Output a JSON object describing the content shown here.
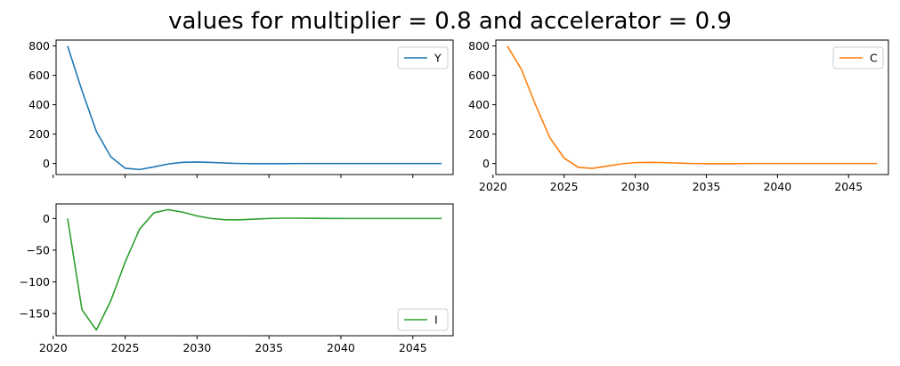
{
  "figure": {
    "title": "values for multiplier = 0.8 and accelerator = 0.9"
  },
  "chart_data": [
    {
      "type": "line",
      "name": "Y",
      "color": "#1f77b4",
      "x": [
        2021,
        2022,
        2023,
        2024,
        2025,
        2026,
        2027,
        2028,
        2029,
        2030,
        2031,
        2032,
        2033,
        2034,
        2035,
        2036,
        2037,
        2038,
        2039,
        2040,
        2041,
        2042,
        2043,
        2044,
        2045,
        2046,
        2047
      ],
      "series": [
        {
          "name": "Y",
          "color": "#1f77b4",
          "values": [
            800,
            496,
            218,
            46,
            -32,
            -41,
            -23,
            -3,
            8,
            10,
            7,
            3,
            0,
            -1,
            -1,
            -1,
            0,
            0,
            0,
            0,
            0,
            0,
            0,
            0,
            0,
            0,
            0
          ]
        }
      ],
      "xlim": [
        2020.2,
        2047.8
      ],
      "ylim": [
        -75,
        840
      ],
      "xticks": [
        2020,
        2025,
        2030,
        2035,
        2040,
        2045
      ],
      "xtick_labels_visible": false,
      "yticks": [
        0,
        200,
        400,
        600,
        800
      ],
      "ytick_labels": [
        "0",
        "200",
        "400",
        "600",
        "800"
      ],
      "legend": "upper right",
      "grid": false
    },
    {
      "type": "line",
      "name": "C",
      "color": "#ff7f0e",
      "x": [
        2021,
        2022,
        2023,
        2024,
        2025,
        2026,
        2027,
        2028,
        2029,
        2030,
        2031,
        2032,
        2033,
        2034,
        2035,
        2036,
        2037,
        2038,
        2039,
        2040,
        2041,
        2042,
        2043,
        2044,
        2045,
        2046,
        2047
      ],
      "series": [
        {
          "name": "C",
          "color": "#ff7f0e",
          "values": [
            800,
            640,
            397,
            175,
            37,
            -26,
            -33,
            -18,
            -3,
            6,
            8,
            6,
            3,
            0,
            -1,
            -1,
            -1,
            0,
            0,
            0,
            0,
            0,
            0,
            0,
            0,
            0,
            0
          ]
        }
      ],
      "xlim": [
        2020.2,
        2047.8
      ],
      "ylim": [
        -75,
        840
      ],
      "xticks": [
        2020,
        2025,
        2030,
        2035,
        2040,
        2045
      ],
      "xtick_labels": [
        "2020",
        "2025",
        "2030",
        "2035",
        "2040",
        "2045"
      ],
      "xtick_labels_visible": true,
      "yticks": [
        0,
        200,
        400,
        600,
        800
      ],
      "ytick_labels": [
        "0",
        "200",
        "400",
        "600",
        "800"
      ],
      "legend": "upper right",
      "grid": false
    },
    {
      "type": "line",
      "name": "I",
      "color": "#2ca02c",
      "x": [
        2021,
        2022,
        2023,
        2024,
        2025,
        2026,
        2027,
        2028,
        2029,
        2030,
        2031,
        2032,
        2033,
        2034,
        2035,
        2036,
        2037,
        2038,
        2039,
        2040,
        2041,
        2042,
        2043,
        2044,
        2045,
        2046,
        2047
      ],
      "series": [
        {
          "name": "I",
          "color": "#2ca02c",
          "values": [
            0,
            -144,
            -176,
            -130,
            -69,
            -17,
            9,
            14,
            10,
            4,
            0,
            -2,
            -2,
            -1,
            0,
            0.5,
            0.5,
            0.3,
            0.1,
            0,
            0,
            0,
            0,
            0,
            0,
            0,
            0
          ]
        }
      ],
      "xlim": [
        2020.2,
        2047.8
      ],
      "ylim": [
        -185,
        23
      ],
      "xticks": [
        2020,
        2025,
        2030,
        2035,
        2040,
        2045
      ],
      "xtick_labels": [
        "2020",
        "2025",
        "2030",
        "2035",
        "2040",
        "2045"
      ],
      "xtick_labels_visible": true,
      "yticks": [
        -150,
        -100,
        -50,
        0
      ],
      "ytick_labels": [
        "−150",
        "−100",
        "−50",
        "0"
      ],
      "legend": "lower right",
      "grid": false
    }
  ]
}
